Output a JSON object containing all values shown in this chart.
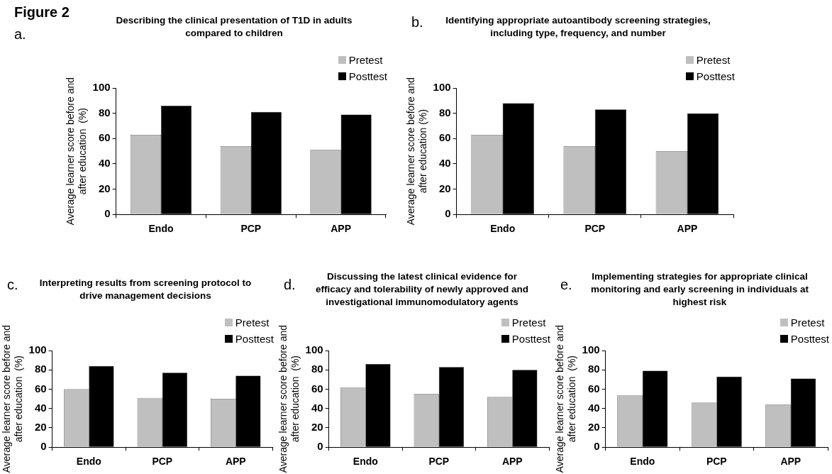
{
  "chart_data": [
    {
      "type": "bar",
      "title": "Describing the clinical presentation of T1D in adults compared to children",
      "annotations": [
        "Figure 2",
        "a."
      ],
      "ylabel": "Average learner score before and after education  (%)",
      "categories": [
        "Endo",
        "PCP",
        "APP"
      ],
      "ylim": [
        0,
        100
      ],
      "yticks": [
        0,
        20,
        40,
        60,
        80,
        100
      ],
      "grid": false,
      "legend": "top right",
      "series": [
        {
          "name": "Pretest",
          "color": "#bfbfbf",
          "values": [
            63,
            54,
            51
          ]
        },
        {
          "name": "Posttest",
          "color": "#000000",
          "values": [
            86,
            81,
            79
          ]
        }
      ]
    },
    {
      "type": "bar",
      "title": "Identifying appropriate autoantibody screening strategies, including type, frequency, and number",
      "annotations": [
        "b."
      ],
      "ylabel": "Average learner score before and after education (%)",
      "categories": [
        "Endo",
        "PCP",
        "APP"
      ],
      "ylim": [
        0,
        100
      ],
      "yticks": [
        0,
        20,
        40,
        60,
        80,
        100
      ],
      "grid": false,
      "legend": "top right",
      "series": [
        {
          "name": "Pretest",
          "color": "#bfbfbf",
          "values": [
            63,
            54,
            50
          ]
        },
        {
          "name": "Posttest",
          "color": "#000000",
          "values": [
            88,
            83,
            80
          ]
        }
      ]
    },
    {
      "type": "bar",
      "title": "Interpreting results from screening protocol to drive management decisions",
      "annotations": [
        "c."
      ],
      "ylabel": "Average learner score before and after education  (%)",
      "categories": [
        "Endo",
        "PCP",
        "APP"
      ],
      "ylim": [
        0,
        100
      ],
      "yticks": [
        0,
        20,
        40,
        60,
        80,
        100
      ],
      "grid": false,
      "legend": "top right",
      "series": [
        {
          "name": "Pretest",
          "color": "#bfbfbf",
          "values": [
            60,
            51,
            50
          ]
        },
        {
          "name": "Posttest",
          "color": "#000000",
          "values": [
            84,
            77,
            74
          ]
        }
      ]
    },
    {
      "type": "bar",
      "title": "Discussing the latest clinical evidence for efficacy and tolerability of newly approved and investigational immunomodulatory agents",
      "annotations": [
        "d."
      ],
      "ylabel": "Average learner score before and after education  (%)",
      "categories": [
        "Endo",
        "PCP",
        "APP"
      ],
      "ylim": [
        0,
        100
      ],
      "yticks": [
        0,
        20,
        40,
        60,
        80,
        100
      ],
      "grid": false,
      "legend": "top right",
      "series": [
        {
          "name": "Pretest",
          "color": "#bfbfbf",
          "values": [
            62,
            55,
            52
          ]
        },
        {
          "name": "Posttest",
          "color": "#000000",
          "values": [
            86,
            83,
            80
          ]
        }
      ]
    },
    {
      "type": "bar",
      "title": "Implementing strategies for appropriate clinical monitoring and early screening in individuals at highest risk",
      "annotations": [
        "e."
      ],
      "ylabel": "Average learner score before and after education  (%)",
      "categories": [
        "Endo",
        "PCP",
        "APP"
      ],
      "ylim": [
        0,
        100
      ],
      "yticks": [
        0,
        20,
        40,
        60,
        80,
        100
      ],
      "grid": false,
      "legend": "top right",
      "series": [
        {
          "name": "Pretest",
          "color": "#bfbfbf",
          "values": [
            54,
            46,
            44
          ]
        },
        {
          "name": "Posttest",
          "color": "#000000",
          "values": [
            79,
            73,
            71
          ]
        }
      ]
    }
  ]
}
